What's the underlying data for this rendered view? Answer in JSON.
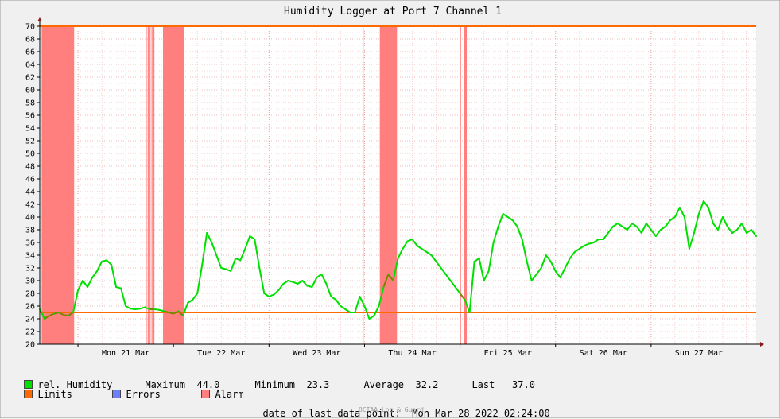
{
  "chart_data": {
    "type": "line",
    "title": "Humidity Logger at Port 7 Channel 1",
    "xlabel": "",
    "ylabel": "",
    "ylim": [
      20,
      70
    ],
    "y_ticks": [
      20,
      22,
      24,
      26,
      28,
      30,
      32,
      34,
      36,
      38,
      40,
      42,
      44,
      46,
      48,
      50,
      52,
      54,
      56,
      58,
      60,
      62,
      64,
      66,
      68,
      70
    ],
    "x_ticks": [
      "Mon 21 Mar",
      "Tue 22 Mar",
      "Wed 23 Mar",
      "Thu 24 Mar",
      "Fri 25 Mar",
      "Sat 26 Mar",
      "Sun 27 Mar"
    ],
    "x_range_days": [
      20.6,
      28.1
    ],
    "grid": true,
    "limits": {
      "upper": 70,
      "lower": 25
    },
    "alarm_periods": [
      [
        20.62,
        20.96
      ],
      [
        21.71,
        21.72
      ],
      [
        21.73,
        21.74
      ],
      [
        21.75,
        21.76
      ],
      [
        21.77,
        21.78
      ],
      [
        21.79,
        21.8
      ],
      [
        21.89,
        22.11
      ],
      [
        23.98,
        23.985
      ],
      [
        24.16,
        24.34
      ],
      [
        25.0,
        25.005
      ],
      [
        25.04,
        25.07
      ]
    ],
    "series": [
      {
        "name": "rel. Humidity",
        "color": "#00e000",
        "x": [
          20.6,
          20.65,
          20.7,
          20.75,
          20.8,
          20.85,
          20.9,
          20.95,
          21.0,
          21.05,
          21.1,
          21.15,
          21.2,
          21.25,
          21.3,
          21.35,
          21.4,
          21.45,
          21.5,
          21.55,
          21.6,
          21.65,
          21.7,
          21.75,
          21.8,
          21.85,
          21.9,
          21.95,
          22.0,
          22.05,
          22.1,
          22.15,
          22.2,
          22.25,
          22.3,
          22.35,
          22.4,
          22.45,
          22.5,
          22.55,
          22.6,
          22.65,
          22.7,
          22.75,
          22.8,
          22.85,
          22.9,
          22.95,
          23.0,
          23.05,
          23.1,
          23.15,
          23.2,
          23.25,
          23.3,
          23.35,
          23.4,
          23.45,
          23.5,
          23.55,
          23.6,
          23.65,
          23.7,
          23.75,
          23.8,
          23.85,
          23.9,
          23.95,
          24.0,
          24.05,
          24.1,
          24.15,
          24.2,
          24.25,
          24.3,
          24.35,
          24.4,
          24.45,
          24.5,
          24.55,
          24.6,
          24.65,
          24.7,
          24.75,
          24.8,
          24.85,
          24.9,
          24.95,
          25.0,
          25.05,
          25.1,
          25.15,
          25.2,
          25.25,
          25.3,
          25.35,
          25.4,
          25.45,
          25.5,
          25.55,
          25.6,
          25.65,
          25.7,
          25.75,
          25.8,
          25.85,
          25.9,
          25.95,
          26.0,
          26.05,
          26.1,
          26.15,
          26.2,
          26.25,
          26.3,
          26.35,
          26.4,
          26.45,
          26.5,
          26.55,
          26.6,
          26.65,
          26.7,
          26.75,
          26.8,
          26.85,
          26.9,
          26.95,
          27.0,
          27.05,
          27.1,
          27.15,
          27.2,
          27.25,
          27.3,
          27.35,
          27.4,
          27.45,
          27.5,
          27.55,
          27.6,
          27.65,
          27.7,
          27.75,
          27.8,
          27.85,
          27.9,
          27.95,
          28.0,
          28.05,
          28.1
        ],
        "values": [
          25.5,
          24.0,
          24.5,
          24.8,
          25.0,
          24.6,
          24.5,
          25.0,
          28.5,
          30.0,
          29.0,
          30.5,
          31.5,
          33.0,
          33.2,
          32.5,
          29.0,
          28.8,
          26.0,
          25.6,
          25.5,
          25.6,
          25.8,
          25.5,
          25.5,
          25.4,
          25.2,
          25.0,
          24.8,
          25.2,
          24.5,
          26.5,
          27.0,
          28.0,
          32.5,
          37.5,
          36.0,
          34.0,
          32.0,
          31.8,
          31.5,
          33.5,
          33.2,
          35.0,
          37.0,
          36.5,
          32.0,
          28.0,
          27.5,
          27.8,
          28.5,
          29.5,
          30.0,
          29.8,
          29.5,
          30.0,
          29.2,
          29.0,
          30.5,
          31.0,
          29.5,
          27.5,
          27.0,
          26.0,
          25.5,
          25.0,
          25.0,
          27.5,
          26.0,
          24.0,
          24.5,
          26.0,
          29.0,
          31.0,
          30.0,
          33.5,
          35.0,
          36.2,
          36.5,
          35.5,
          35.0,
          34.5,
          34.0,
          33.0,
          32.0,
          31.0,
          30.0,
          29.0,
          28.0,
          27.0,
          25.0,
          33.0,
          33.5,
          30.0,
          31.5,
          36.0,
          38.5,
          40.5,
          40.0,
          39.5,
          38.5,
          36.5,
          33.0,
          30.0,
          31.0,
          32.0,
          34.0,
          33.0,
          31.5,
          30.5,
          32.0,
          33.5,
          34.5,
          35.0,
          35.5,
          35.8,
          36.0,
          36.5,
          36.5,
          37.5,
          38.5,
          39.0,
          38.5,
          38.0,
          39.0,
          38.5,
          37.5,
          39.0,
          38.0,
          37.0,
          38.0,
          38.5,
          39.5,
          40.0,
          41.5,
          40.0,
          35.0,
          37.5,
          40.5,
          42.5,
          41.5,
          39.0,
          38.0,
          40.0,
          38.5,
          37.5,
          38.0,
          39.0,
          37.5,
          38.0,
          37.0
        ]
      }
    ]
  },
  "legend": {
    "humidity_label": "rel. Humidity",
    "maximum_label": "Maximum",
    "maximum_value": "44.0",
    "minimum_label": "Minimum",
    "minimum_value": "23.3",
    "average_label": "Average",
    "average_value": "32.2",
    "last_label": "Last",
    "last_value": "37.0",
    "limits_label": "Limits",
    "errors_label": "Errors",
    "alarm_label": "Alarm"
  },
  "footer": {
    "last_point_label": "date of last data point:",
    "last_point_value": "Mon Mar 28 2022 02:24:00",
    "credit": "OCTAA Log & Guard"
  },
  "colors": {
    "humidity": "#00e000",
    "humidity_in_alarm": "#7f7f00",
    "limits": "#ff6a00",
    "errors": "#6b7fff",
    "alarm": "#ff7f7f"
  }
}
